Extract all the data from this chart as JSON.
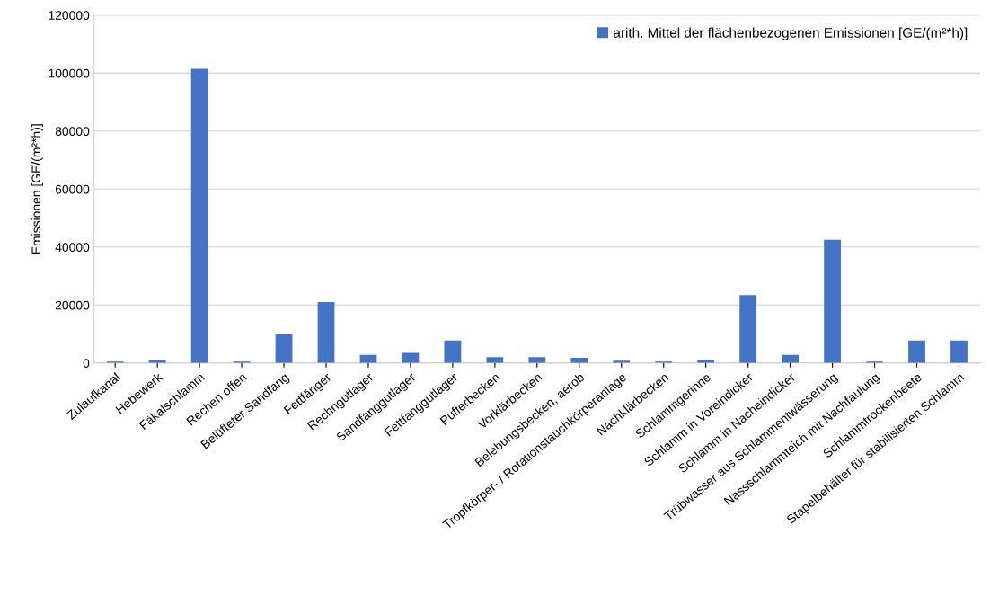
{
  "chart_data": {
    "type": "bar",
    "ylabel": "Emissionen [GE/(m²*h)]",
    "categories": [
      "Zulaufkanal",
      "Hebewerk",
      "Fäkalschlamm",
      "Rechen offen",
      "Belüfteter Sandfang",
      "Fettfänger",
      "Rechngutlager",
      "Sandfanggutlager",
      "Fettfanggutlager",
      "Pufferbecken",
      "Vorklärbecken",
      "Belebungsbecken, aerob",
      "Tropfkörper- / Rotationstauchkörperanlage",
      "Nachklärbecken",
      "Schlammgerinne",
      "Schlamm in Voreindicker",
      "Schlamm in Nacheindicker",
      "Trübwasser aus Schlammentwässerung",
      "Nassschlammteich mit Nachfaulung",
      "Schlammtrockenbeete",
      "Stapelbehälter für stabilisierten Schlamm"
    ],
    "series": [
      {
        "name": "arith. Mittel der flächenbezogenen Emissionen [GE/(m²*h)]",
        "color": "#4472c4",
        "values": [
          500,
          1000,
          101500,
          500,
          10000,
          21000,
          2800,
          3500,
          7800,
          2000,
          2000,
          1800,
          800,
          500,
          1200,
          23400,
          2800,
          42500,
          500,
          7800,
          7800
        ]
      }
    ],
    "ylim": [
      0,
      120000
    ],
    "yticks": [
      0,
      20000,
      40000,
      60000,
      80000,
      100000,
      120000
    ],
    "grid": "y",
    "legend": "top right"
  }
}
